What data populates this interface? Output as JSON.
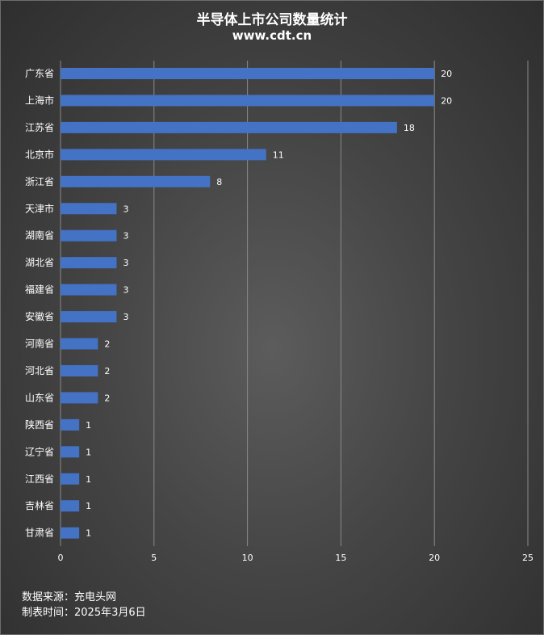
{
  "chart_data": {
    "type": "bar",
    "orientation": "horizontal",
    "title": "半导体上市公司数量统计",
    "subtitle": "www.cdt.cn",
    "xlabel": "",
    "ylabel": "",
    "categories": [
      "广东省",
      "上海市",
      "江苏省",
      "北京市",
      "浙江省",
      "天津市",
      "湖南省",
      "湖北省",
      "福建省",
      "安徽省",
      "河南省",
      "河北省",
      "山东省",
      "陕西省",
      "辽宁省",
      "江西省",
      "吉林省",
      "甘肃省"
    ],
    "values": [
      20,
      20,
      18,
      11,
      8,
      3,
      3,
      3,
      3,
      3,
      2,
      2,
      2,
      1,
      1,
      1,
      1,
      1
    ],
    "xlim": [
      0,
      25
    ],
    "x_ticks": [
      0,
      5,
      10,
      15,
      20,
      25
    ],
    "grid": "vertical",
    "data_labels": true,
    "legend": "none",
    "bar_color": "#4472c4"
  },
  "footer": {
    "source": "数据来源：充电头网",
    "date": "制表时间：2025年3月6日"
  },
  "colors": {
    "label": "#ffffff",
    "grid": "#8a8a8a"
  }
}
